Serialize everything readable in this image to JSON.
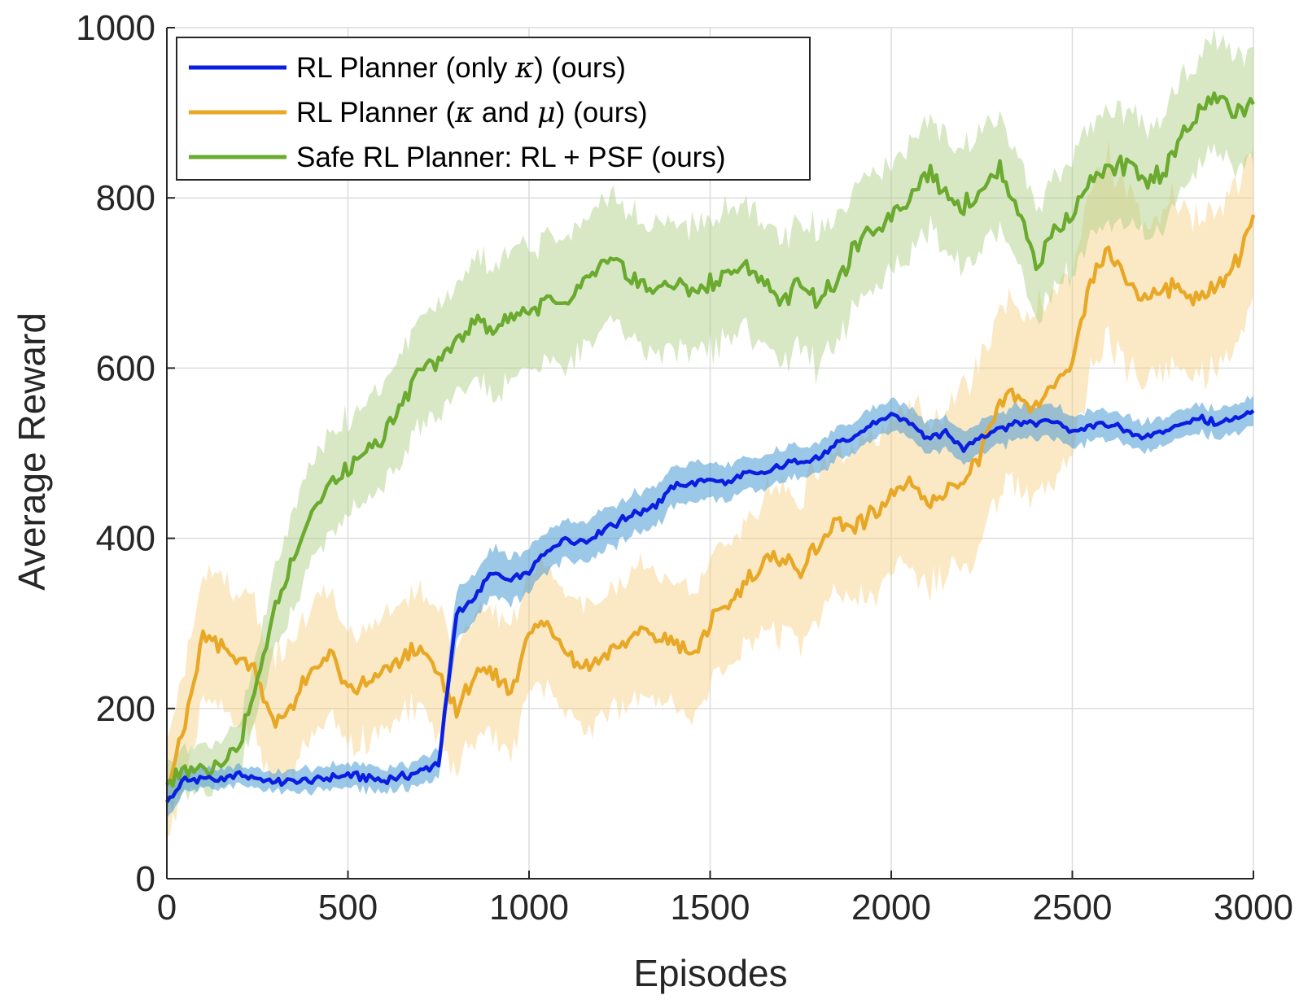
{
  "chart_data": {
    "type": "line",
    "title": "",
    "xlabel": "Episodes",
    "ylabel": "Average Reward",
    "xlim": [
      0,
      3000
    ],
    "ylim": [
      0,
      1000
    ],
    "xticks": [
      0,
      500,
      1000,
      1500,
      2000,
      2500,
      3000
    ],
    "yticks": [
      0,
      200,
      400,
      600,
      800,
      1000
    ],
    "grid": true,
    "legend_position": "top-left",
    "x": [
      0,
      50,
      100,
      150,
      200,
      250,
      300,
      350,
      400,
      450,
      500,
      550,
      600,
      650,
      700,
      750,
      800,
      850,
      900,
      950,
      1000,
      1050,
      1100,
      1150,
      1200,
      1250,
      1300,
      1350,
      1400,
      1450,
      1500,
      1550,
      1600,
      1650,
      1700,
      1750,
      1800,
      1850,
      1900,
      1950,
      2000,
      2050,
      2100,
      2150,
      2200,
      2250,
      2300,
      2350,
      2400,
      2450,
      2500,
      2550,
      2600,
      2650,
      2700,
      2750,
      2800,
      2850,
      2900,
      2950,
      3000
    ],
    "series": [
      {
        "name": "RL Planner (only κ) (ours)",
        "label_prefix": "RL Planner (only ",
        "label_math": "κ",
        "label_suffix": ") (ours)",
        "color": "#0a1ee0",
        "band_color": "#4a9ad6",
        "values": [
          90,
          115,
          118,
          115,
          122,
          118,
          112,
          114,
          115,
          120,
          122,
          118,
          115,
          120,
          125,
          135,
          310,
          330,
          360,
          350,
          360,
          385,
          400,
          395,
          410,
          420,
          430,
          440,
          460,
          465,
          470,
          465,
          478,
          475,
          485,
          490,
          495,
          510,
          520,
          535,
          545,
          535,
          520,
          525,
          505,
          520,
          530,
          535,
          535,
          540,
          525,
          530,
          535,
          525,
          520,
          525,
          535,
          540,
          535,
          540,
          550
        ],
        "band_halfwidth": [
          20,
          15,
          12,
          12,
          12,
          12,
          12,
          14,
          14,
          14,
          15,
          15,
          15,
          15,
          15,
          18,
          30,
          30,
          30,
          28,
          28,
          25,
          25,
          25,
          25,
          25,
          25,
          25,
          25,
          25,
          22,
          22,
          20,
          20,
          20,
          20,
          20,
          20,
          20,
          20,
          20,
          20,
          20,
          20,
          20,
          20,
          20,
          20,
          20,
          20,
          20,
          18,
          18,
          18,
          18,
          18,
          18,
          18,
          18,
          18,
          18
        ]
      },
      {
        "name": "RL Planner (κ and μ) (ours)",
        "label_prefix": "RL Planner (",
        "label_math": "κ",
        "label_middle": " and ",
        "label_math2": "μ",
        "label_suffix": ") (ours)",
        "color": "#e8a826",
        "band_color": "#f7cf7e",
        "values": [
          110,
          180,
          285,
          270,
          260,
          240,
          180,
          210,
          240,
          270,
          220,
          230,
          240,
          260,
          270,
          240,
          200,
          235,
          240,
          220,
          290,
          300,
          270,
          250,
          260,
          275,
          290,
          285,
          280,
          260,
          300,
          320,
          350,
          370,
          380,
          360,
          390,
          420,
          410,
          430,
          450,
          470,
          440,
          460,
          470,
          500,
          560,
          570,
          550,
          580,
          600,
          700,
          740,
          700,
          680,
          700,
          690,
          680,
          700,
          720,
          780
        ],
        "band_halfwidth": [
          60,
          70,
          80,
          80,
          80,
          80,
          80,
          80,
          80,
          80,
          70,
          70,
          70,
          70,
          70,
          80,
          80,
          80,
          80,
          80,
          75,
          75,
          75,
          75,
          75,
          75,
          80,
          80,
          80,
          80,
          80,
          80,
          80,
          80,
          90,
          90,
          90,
          90,
          90,
          100,
          100,
          100,
          100,
          100,
          110,
          110,
          110,
          110,
          120,
          120,
          120,
          110,
          110,
          110,
          100,
          100,
          100,
          100,
          100,
          100,
          100
        ]
      },
      {
        "name": "Safe RL Planner: RL + PSF (ours)",
        "label_prefix": "Safe RL Planner: RL + PSF (ours)",
        "color": "#6aaa2e",
        "band_color": "#a8cd7e",
        "values": [
          110,
          125,
          130,
          140,
          160,
          230,
          320,
          380,
          430,
          460,
          480,
          500,
          520,
          560,
          600,
          610,
          630,
          660,
          640,
          660,
          670,
          680,
          670,
          700,
          720,
          720,
          700,
          690,
          700,
          690,
          700,
          710,
          720,
          700,
          680,
          700,
          680,
          700,
          740,
          760,
          780,
          800,
          830,
          810,
          790,
          810,
          830,
          790,
          720,
          760,
          780,
          820,
          830,
          840,
          820,
          830,
          870,
          900,
          920,
          900,
          910
        ],
        "band_halfwidth": [
          30,
          30,
          30,
          30,
          30,
          40,
          50,
          60,
          60,
          60,
          60,
          60,
          60,
          70,
          70,
          70,
          70,
          75,
          80,
          80,
          80,
          80,
          80,
          80,
          80,
          80,
          80,
          80,
          80,
          80,
          80,
          80,
          80,
          80,
          80,
          80,
          80,
          80,
          75,
          75,
          70,
          70,
          70,
          70,
          70,
          70,
          70,
          70,
          70,
          70,
          70,
          70,
          70,
          70,
          70,
          70,
          70,
          70,
          70,
          70,
          70
        ]
      }
    ]
  }
}
